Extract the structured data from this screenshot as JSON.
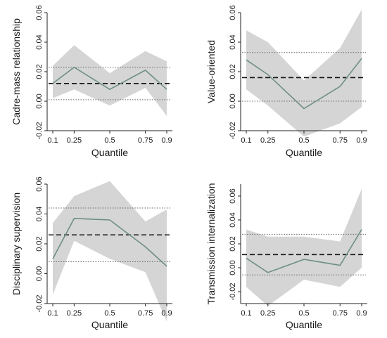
{
  "chart_data": [
    {
      "type": "line",
      "ylabel": "Cadre-mass relationship",
      "xlabel": "Quantile",
      "x": [
        0.1,
        0.25,
        0.5,
        0.75,
        0.9
      ],
      "x_tick_labels": [
        "0.1",
        "0.25",
        "0.5",
        "0.75",
        "0.9"
      ],
      "ylim": [
        -0.02,
        0.06
      ],
      "y_ticks": [
        -0.02,
        0,
        0.02,
        0.04,
        0.06
      ],
      "y_tick_labels": [
        "-0.02",
        "0.00",
        "0.02",
        "0.04",
        "0.06"
      ],
      "estimate": [
        0.012,
        0.023,
        0.008,
        0.021,
        0.008
      ],
      "ci_upper": [
        0.024,
        0.038,
        0.019,
        0.034,
        0.027
      ],
      "ci_lower": [
        0.002,
        0.008,
        -0.003,
        0.009,
        -0.01
      ],
      "ols_estimate": 0.012,
      "ols_ci": [
        0.001,
        0.023
      ]
    },
    {
      "type": "line",
      "ylabel": "Value-oriented",
      "xlabel": "Quantile",
      "x": [
        0.1,
        0.25,
        0.5,
        0.75,
        0.9
      ],
      "x_tick_labels": [
        "0.1",
        "0.25",
        "0.5",
        "0.75",
        "0.9"
      ],
      "ylim": [
        -0.02,
        0.06
      ],
      "y_ticks": [
        -0.02,
        0,
        0.02,
        0.04,
        0.06
      ],
      "y_tick_labels": [
        "-0.02",
        "0.00",
        "0.02",
        "0.04",
        "0.06"
      ],
      "estimate": [
        0.028,
        0.018,
        -0.005,
        0.01,
        0.029
      ],
      "ci_upper": [
        0.048,
        0.04,
        0.014,
        0.036,
        0.062
      ],
      "ci_lower": [
        0.008,
        -0.003,
        -0.024,
        -0.015,
        -0.004
      ],
      "ols_estimate": 0.016,
      "ols_ci": [
        0.0,
        0.033
      ]
    },
    {
      "type": "line",
      "ylabel": "Disciplinary supervision",
      "xlabel": "Quantile",
      "x": [
        0.1,
        0.25,
        0.5,
        0.75,
        0.9
      ],
      "x_tick_labels": [
        "0.1",
        "0.25",
        "0.5",
        "0.75",
        "0.9"
      ],
      "ylim": [
        -0.02,
        0.06
      ],
      "y_ticks": [
        -0.02,
        0,
        0.02,
        0.04,
        0.06
      ],
      "y_tick_labels": [
        "-0.02",
        "0.00",
        "0.02",
        "0.04",
        "0.06"
      ],
      "estimate": [
        0.01,
        0.037,
        0.036,
        0.018,
        0.005
      ],
      "ci_upper": [
        0.034,
        0.052,
        0.062,
        0.035,
        0.043
      ],
      "ci_lower": [
        -0.014,
        0.022,
        0.01,
        0.001,
        -0.032
      ],
      "ols_estimate": 0.026,
      "ols_ci": [
        0.008,
        0.044
      ]
    },
    {
      "type": "line",
      "ylabel": "Transmission internalization",
      "xlabel": "Quantile",
      "x": [
        0.1,
        0.25,
        0.5,
        0.75,
        0.9
      ],
      "x_tick_labels": [
        "0.1",
        "0.25",
        "0.5",
        "0.75",
        "0.9"
      ],
      "ylim": [
        -0.03,
        0.07
      ],
      "y_ticks": [
        -0.02,
        0,
        0.02,
        0.04,
        0.06
      ],
      "y_tick_labels": [
        "-0.02",
        "0.00",
        "0.02",
        "0.04",
        "0.06"
      ],
      "estimate": [
        0.008,
        -0.004,
        0.007,
        0.002,
        0.032
      ],
      "ci_upper": [
        0.032,
        0.026,
        0.026,
        0.022,
        0.066
      ],
      "ci_lower": [
        -0.016,
        -0.032,
        -0.01,
        -0.016,
        0.0
      ],
      "ols_estimate": 0.011,
      "ols_ci": [
        -0.006,
        0.028
      ]
    }
  ],
  "colors": {
    "ci_band": "#d5d5d5",
    "estimate_line": "#6e8f87",
    "ols_line": "#111111",
    "ols_ci_line": "#666666"
  }
}
